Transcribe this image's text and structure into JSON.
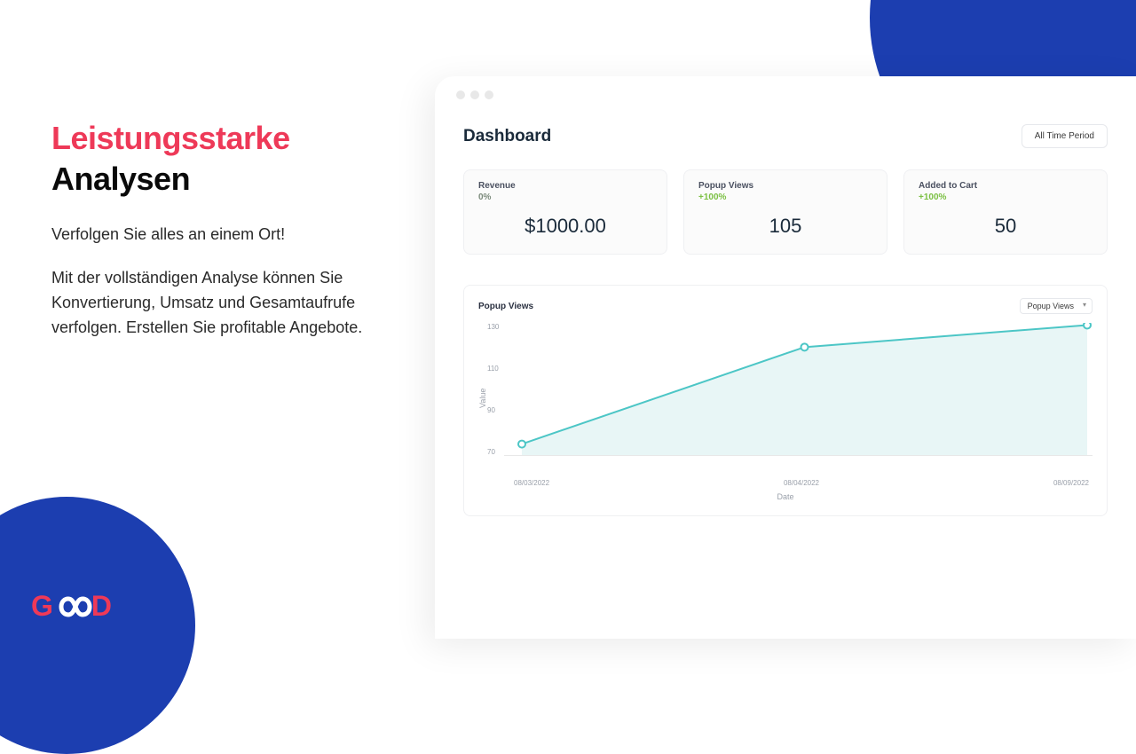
{
  "colors": {
    "accent_blue": "#1c3eb0",
    "accent_red": "#ee3958",
    "change_green": "#7bc043",
    "change_neutral": "#7b8a7b"
  },
  "marketing": {
    "title_line1": "Leistungsstarke",
    "title_line2": "Analysen",
    "subtitle": "Verfolgen Sie alles an einem Ort!",
    "description": "Mit der vollständigen Analyse können Sie Konvertierung, Umsatz und Gesamtaufrufe verfolgen. Erstellen Sie profitable Angebote."
  },
  "logo": {
    "text_g": "G",
    "text_d": "D"
  },
  "dashboard": {
    "title": "Dashboard",
    "time_period_label": "All Time Period",
    "stats": [
      {
        "label": "Revenue",
        "change": "0%",
        "change_color": "#7b8a7b",
        "value": "$1000.00"
      },
      {
        "label": "Popup Views",
        "change": "+100%",
        "change_color": "#7bc043",
        "value": "105"
      },
      {
        "label": "Added to Cart",
        "change": "+100%",
        "change_color": "#7bc043",
        "value": "50"
      }
    ],
    "chart": {
      "type": "area",
      "title": "Popup Views",
      "selector": "Popup Views",
      "y_label": "Value",
      "x_label": "Date",
      "ylim": [
        70,
        130
      ],
      "ytick_step": 20,
      "yticks": [
        "130",
        "110",
        "90",
        "70"
      ],
      "xticks": [
        "08/03/2022",
        "08/04/2022",
        "08/09/2022"
      ],
      "x_positions": [
        0,
        0.5,
        1.0
      ],
      "values": [
        75,
        119,
        129
      ],
      "line_color": "#4cc6c6",
      "fill_color": "#d8f0f0",
      "marker_color": "#4cc6c6",
      "marker_size": 4,
      "background_color": "#ffffff",
      "line_width": 2
    }
  }
}
